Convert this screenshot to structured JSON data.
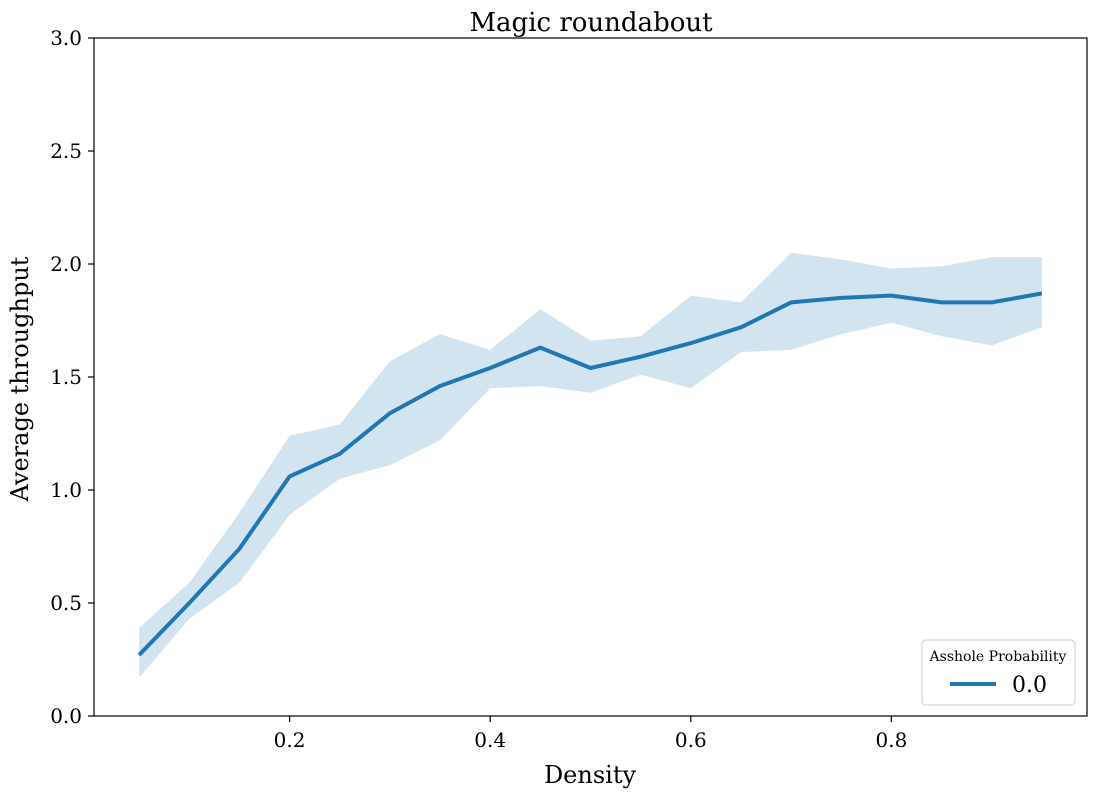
{
  "chart_data": {
    "type": "line",
    "title": "Magic roundabout",
    "xlabel": "Density",
    "ylabel": "Average throughput",
    "xlim": [
      0.005,
      0.995
    ],
    "ylim": [
      0.0,
      3.0
    ],
    "x_ticks": [
      0.2,
      0.4,
      0.6,
      0.8
    ],
    "x_tick_labels": [
      "0.2",
      "0.4",
      "0.6",
      "0.8"
    ],
    "y_ticks": [
      0.0,
      0.5,
      1.0,
      1.5,
      2.0,
      2.5,
      3.0
    ],
    "y_tick_labels": [
      "0.0",
      "0.5",
      "1.0",
      "1.5",
      "2.0",
      "2.5",
      "3.0"
    ],
    "grid": false,
    "legend": {
      "title": "Asshole Probability",
      "placement": "lower-right"
    },
    "series": [
      {
        "name": "0.0",
        "color": "#1f77b4",
        "band_color": "#1f77b4",
        "x": [
          0.05,
          0.1,
          0.15,
          0.2,
          0.25,
          0.3,
          0.35,
          0.4,
          0.45,
          0.5,
          0.55,
          0.6,
          0.65,
          0.7,
          0.75,
          0.8,
          0.85,
          0.9,
          0.95
        ],
        "y": [
          0.27,
          0.5,
          0.74,
          1.06,
          1.16,
          1.34,
          1.46,
          1.54,
          1.63,
          1.54,
          1.59,
          1.65,
          1.72,
          1.83,
          1.85,
          1.86,
          1.83,
          1.83,
          1.87
        ],
        "y_upper": [
          0.39,
          0.59,
          0.9,
          1.24,
          1.29,
          1.57,
          1.69,
          1.62,
          1.8,
          1.66,
          1.68,
          1.86,
          1.83,
          2.05,
          2.02,
          1.98,
          1.99,
          2.03,
          2.03
        ],
        "y_lower": [
          0.17,
          0.43,
          0.59,
          0.89,
          1.05,
          1.11,
          1.22,
          1.45,
          1.46,
          1.43,
          1.51,
          1.45,
          1.61,
          1.62,
          1.69,
          1.74,
          1.68,
          1.64,
          1.72
        ]
      }
    ]
  }
}
